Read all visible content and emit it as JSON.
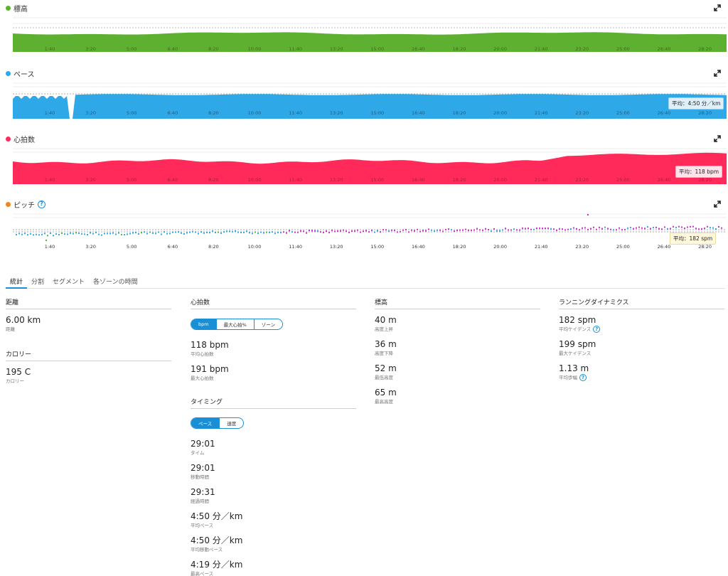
{
  "charts": {
    "elevation": {
      "title": "標高",
      "color": "#5eb130"
    },
    "pace": {
      "title": "ペース",
      "color": "#2ea8e6",
      "avg": "平均：4:50 分／km"
    },
    "heart": {
      "title": "心拍数",
      "color": "#ff2a5a",
      "avg": "平均：118 bpm"
    },
    "cadence": {
      "title": "ピッチ",
      "color": "#f0861e",
      "avg": "平均：182 spm"
    },
    "x_ticks": [
      "1:40",
      "3:20",
      "5:00",
      "6:40",
      "8:20",
      "10:00",
      "11:40",
      "13:20",
      "15:00",
      "16:40",
      "18:20",
      "20:00",
      "21:40",
      "23:20",
      "25:00",
      "26:40",
      "28:20"
    ]
  },
  "tabs": [
    "統計",
    "分割",
    "セグメント",
    "各ゾーンの時間"
  ],
  "distance": {
    "title": "距離",
    "value": "6.00 km",
    "label": "距離"
  },
  "calories": {
    "title": "カロリー",
    "value": "195 C",
    "label": "カロリー"
  },
  "heart_rate": {
    "title": "心拍数",
    "toggle": [
      "bpm",
      "最大心拍%",
      "ゾーン"
    ],
    "avg_value": "118 bpm",
    "avg_label": "平均心拍数",
    "max_value": "191 bpm",
    "max_label": "最大心拍数"
  },
  "timing": {
    "title": "タイミング",
    "toggle": [
      "ペース",
      "速度"
    ],
    "items": [
      {
        "value": "29:01",
        "label": "タイム"
      },
      {
        "value": "29:01",
        "label": "移動時間"
      },
      {
        "value": "29:31",
        "label": "経過時間"
      },
      {
        "value": "4:50 分／km",
        "label": "平均ペース"
      },
      {
        "value": "4:50 分／km",
        "label": "平均移動ペース"
      },
      {
        "value": "4:19 分／km",
        "label": "最高ペース"
      }
    ]
  },
  "elevation": {
    "title": "標高",
    "items": [
      {
        "value": "40 m",
        "label": "高度上昇"
      },
      {
        "value": "36 m",
        "label": "高度下降"
      },
      {
        "value": "52 m",
        "label": "最低高度"
      },
      {
        "value": "65 m",
        "label": "最高高度"
      }
    ]
  },
  "running_dynamics": {
    "title": "ランニングダイナミクス",
    "items": [
      {
        "value": "182 spm",
        "label": "平均ケイデンス"
      },
      {
        "value": "199 spm",
        "label": "最大ケイデンス"
      },
      {
        "value": "1.13 m",
        "label": "平均歩幅"
      }
    ]
  }
}
